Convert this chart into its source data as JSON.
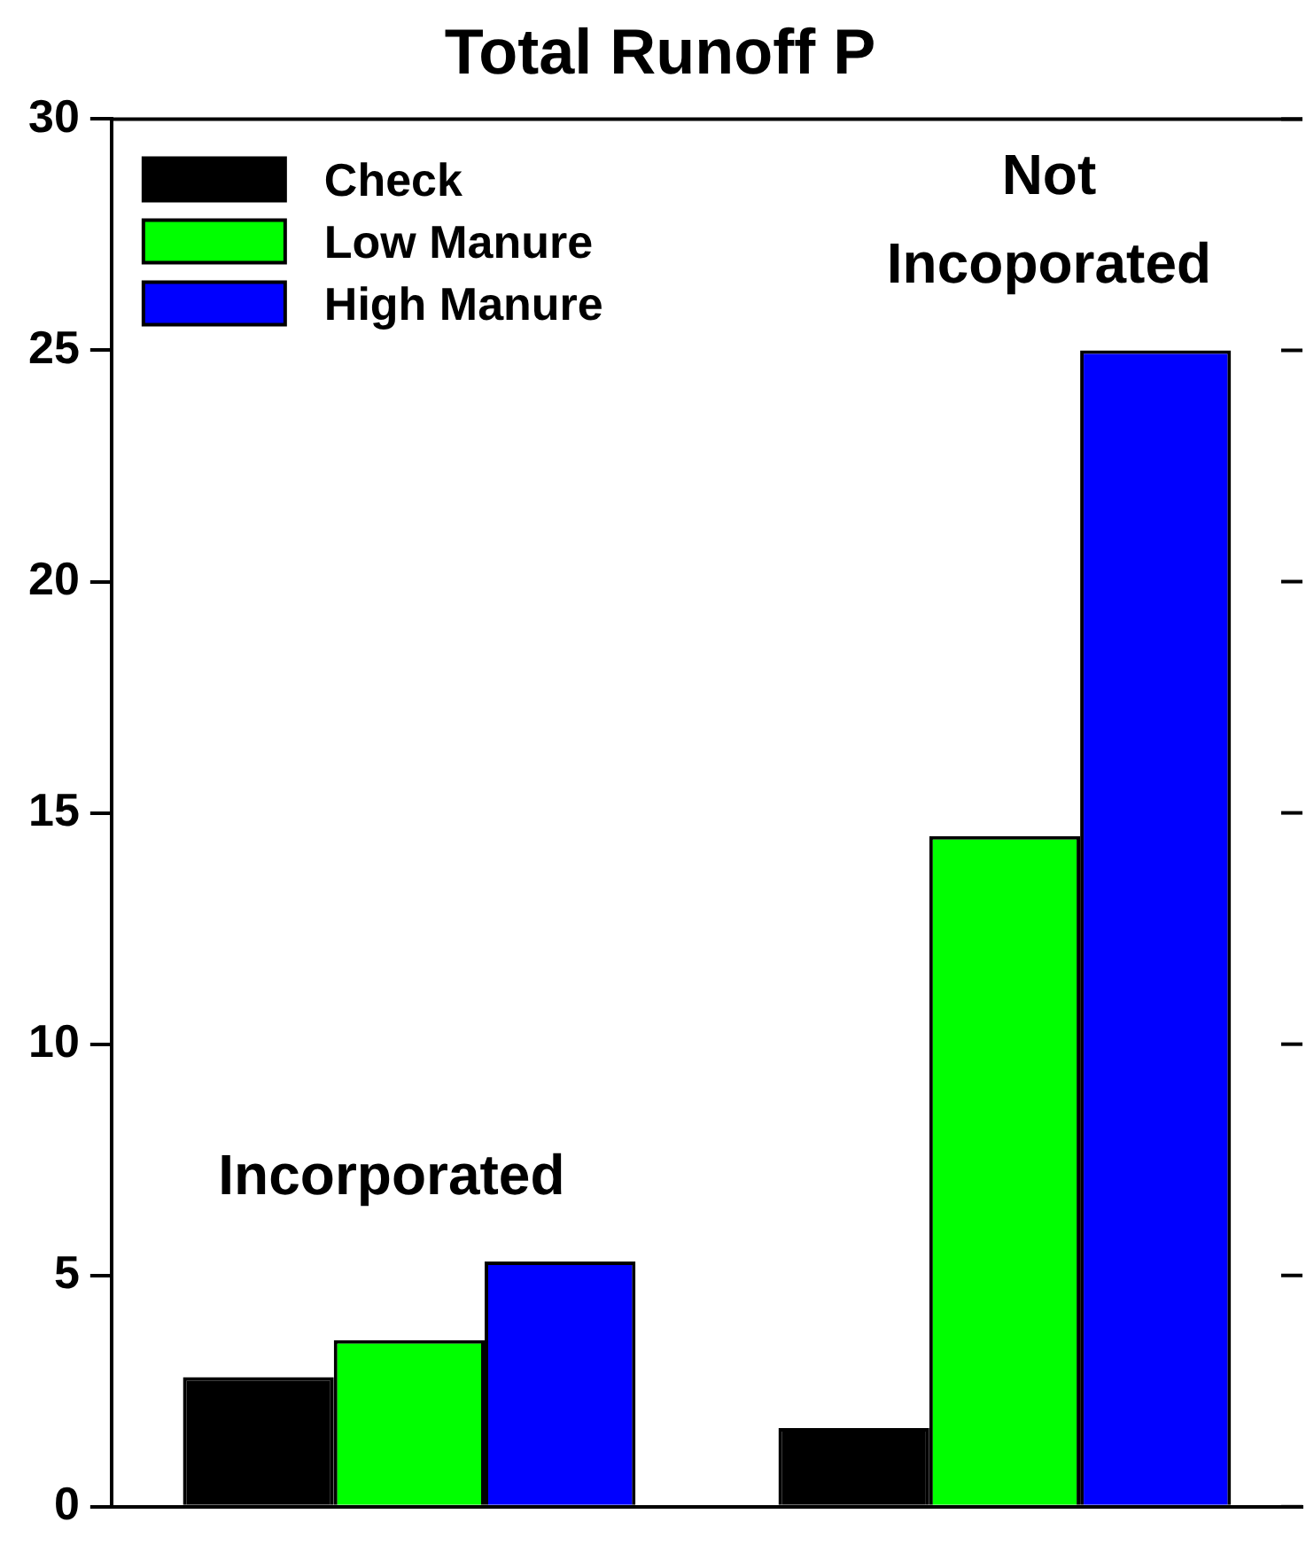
{
  "chart_data": {
    "type": "bar",
    "title": "Total Runoff P",
    "categories": [
      null,
      null
    ],
    "series": [
      {
        "name": "Check",
        "color": "#000000",
        "values": [
          2.8,
          1.7
        ]
      },
      {
        "name": "Low Manure",
        "color": "#00ff00",
        "values": [
          3.6,
          14.5
        ]
      },
      {
        "name": "High Manure",
        "color": "#0000ff",
        "values": [
          5.3,
          25.0
        ]
      }
    ],
    "ylim": [
      0,
      30
    ],
    "yticks": [
      0,
      5,
      10,
      15,
      20,
      25,
      30
    ],
    "grid": false,
    "legend": "top left",
    "annotations": [
      "Incorporated",
      "Not Incoporated"
    ]
  }
}
